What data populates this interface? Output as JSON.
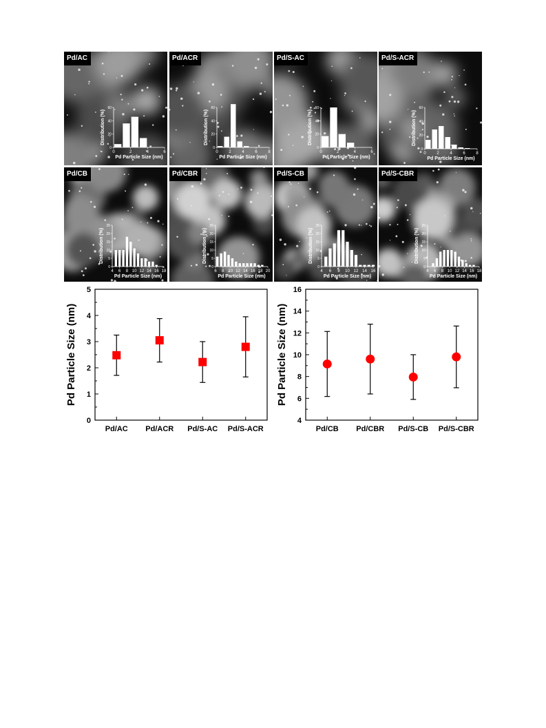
{
  "panels": [
    {
      "label": "Pd/AC",
      "hist": {
        "values": [
          5,
          36,
          46,
          14,
          0
        ],
        "ymax": 60,
        "yticks": [
          0,
          20,
          40,
          60
        ],
        "xticks": [
          "0",
          "2",
          "4",
          "6"
        ],
        "xmin": 0,
        "xmax": 6,
        "bw": 1,
        "bstart": 0
      }
    },
    {
      "label": "Pd/ACR",
      "hist": {
        "values": [
          2,
          16,
          65,
          9,
          2
        ],
        "ymax": 60,
        "yticks": [
          0,
          20,
          40,
          60
        ],
        "xticks": [
          "0",
          "2",
          "4",
          "6",
          "8"
        ],
        "xmin": 0,
        "xmax": 8,
        "bw": 1,
        "bstart": 0
      }
    },
    {
      "label": "Pd/S-AC",
      "hist": {
        "values": [
          17,
          60,
          20,
          7,
          0
        ],
        "ymax": 60,
        "yticks": [
          0,
          20,
          40,
          60
        ],
        "xticks": [
          "0",
          "2",
          "4",
          "6"
        ],
        "xmin": 0,
        "xmax": 6,
        "bw": 1,
        "bstart": 0
      }
    },
    {
      "label": "Pd/S-ACR",
      "hist": {
        "values": [
          13,
          28,
          33,
          17,
          6,
          2,
          1
        ],
        "ymax": 60,
        "yticks": [
          0,
          20,
          40,
          60
        ],
        "xticks": [
          "0",
          "2",
          "4",
          "6",
          "8"
        ],
        "xmin": 0,
        "xmax": 8,
        "bw": 1,
        "bstart": 0
      }
    },
    {
      "label": "Pd/CB",
      "hist": {
        "values": [
          10,
          10,
          10,
          18,
          15,
          11,
          8,
          5,
          5,
          3,
          3,
          1
        ],
        "ymax": 25,
        "yticks": [
          0,
          5,
          10,
          15,
          20,
          25
        ],
        "xticks": [
          "4",
          "6",
          "8",
          "10",
          "12",
          "14",
          "16",
          "18"
        ],
        "xmin": 4,
        "xmax": 18,
        "bw": 1,
        "bstart": 4.5
      }
    },
    {
      "label": "Pd/CBR",
      "hist": {
        "values": [
          6,
          8,
          9,
          7,
          5,
          3,
          2,
          2,
          2,
          2,
          2,
          1,
          1
        ],
        "ymax": 25,
        "yticks": [
          0,
          5,
          10,
          15,
          20,
          25
        ],
        "xticks": [
          "6",
          "8",
          "10",
          "12",
          "14",
          "16",
          "18",
          "20"
        ],
        "xmin": 6,
        "xmax": 20,
        "bw": 1,
        "bstart": 6
      }
    },
    {
      "label": "Pd/S-CB",
      "hist": {
        "values": [
          6,
          11,
          14,
          22,
          22,
          15,
          10,
          7,
          1,
          1,
          1,
          1
        ],
        "ymax": 25,
        "yticks": [
          0,
          5,
          10,
          15,
          20,
          25
        ],
        "xticks": [
          "4",
          "6",
          "8",
          "10",
          "12",
          "14",
          "16"
        ],
        "xmin": 4,
        "xmax": 16,
        "bw": 1,
        "bstart": 4.5
      }
    },
    {
      "label": "Pd/S-CBR",
      "hist": {
        "values": [
          2,
          5,
          9,
          10,
          10,
          10,
          9,
          6,
          4,
          2,
          1,
          1
        ],
        "ymax": 25,
        "yticks": [
          0,
          5,
          10,
          15,
          20,
          25
        ],
        "xticks": [
          "4",
          "6",
          "8",
          "10",
          "12",
          "14",
          "16",
          "18"
        ],
        "xmin": 4,
        "xmax": 18,
        "bw": 1,
        "bstart": 5
      }
    }
  ],
  "hist_ylabel": "Distribution (%)",
  "hist_xlabel": "Pd Particle Size (nm)",
  "chart_data": [
    {
      "type": "scatter",
      "marker": "square",
      "color": "#ff0000",
      "categories": [
        "Pd/AC",
        "Pd/ACR",
        "Pd/S-AC",
        "Pd/S-ACR"
      ],
      "values": [
        2.48,
        3.05,
        2.22,
        2.8
      ],
      "errors": [
        0.77,
        0.83,
        0.78,
        1.15
      ],
      "ylabel": "Pd Particle Size (nm)",
      "xlabel": "",
      "ylim": [
        0,
        5
      ],
      "yticks": [
        "0",
        "1",
        "2",
        "3",
        "4",
        "5"
      ]
    },
    {
      "type": "scatter",
      "marker": "circle",
      "color": "#ff0000",
      "categories": [
        "Pd/CB",
        "Pd/CBR",
        "Pd/S-CB",
        "Pd/S-CBR"
      ],
      "values": [
        9.15,
        9.6,
        7.95,
        9.8
      ],
      "errors": [
        2.98,
        3.2,
        2.05,
        2.83
      ],
      "ylabel": "Pd Particle Size (nm)",
      "xlabel": "",
      "ylim": [
        4,
        16
      ],
      "yticks": [
        "4",
        "6",
        "8",
        "10",
        "12",
        "14",
        "16"
      ]
    }
  ]
}
